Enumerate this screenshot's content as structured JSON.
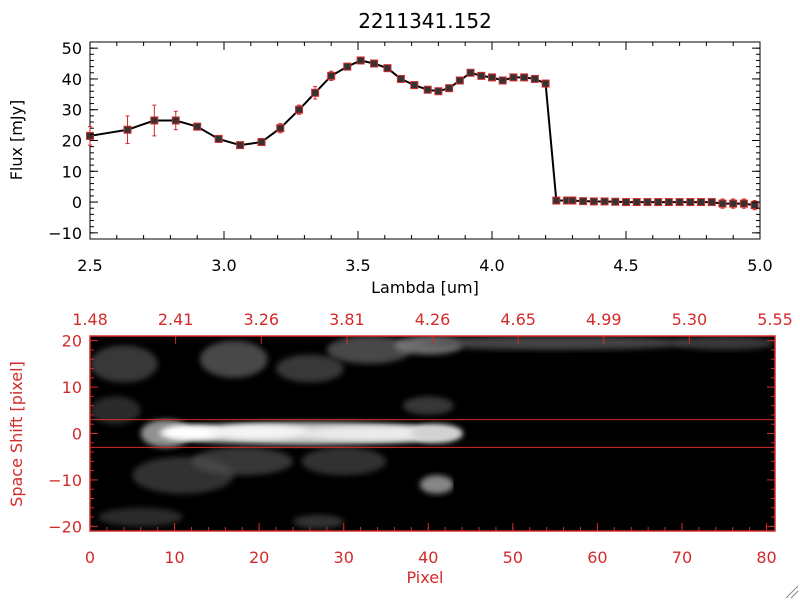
{
  "title": "2211341.152",
  "colors": {
    "axis": "#000000",
    "accent": "#d22b2b",
    "marker": "#d22b2b",
    "line": "#000000"
  },
  "chart_data": [
    {
      "type": "line",
      "xlabel": "Lambda [um]",
      "ylabel": "Flux [mJy]",
      "xlim": [
        2.5,
        5.0
      ],
      "ylim": [
        -12,
        52
      ],
      "xticks": [
        2.5,
        3.0,
        3.5,
        4.0,
        4.5,
        5.0
      ],
      "xtick_labels": [
        "2.5",
        "3.0",
        "3.5",
        "4.0",
        "4.5",
        "5.0"
      ],
      "yticks": [
        -10,
        0,
        10,
        20,
        30,
        40,
        50
      ],
      "ytick_labels": [
        "−10",
        "0",
        "10",
        "20",
        "30",
        "40",
        "50"
      ],
      "series": [
        {
          "x": [
            2.5,
            2.64,
            2.74,
            2.82,
            2.9,
            2.98,
            3.06,
            3.14,
            3.21,
            3.28,
            3.34,
            3.4,
            3.46,
            3.51,
            3.56,
            3.61,
            3.66,
            3.71,
            3.76,
            3.8,
            3.84,
            3.88,
            3.92,
            3.96,
            4.0,
            4.04,
            4.08,
            4.12,
            4.16,
            4.2,
            4.24,
            4.28,
            4.3,
            4.34,
            4.38,
            4.42,
            4.46,
            4.5,
            4.54,
            4.58,
            4.62,
            4.66,
            4.7,
            4.74,
            4.78,
            4.82,
            4.86,
            4.9,
            4.94,
            4.98
          ],
          "y": [
            21.5,
            23.5,
            26.5,
            26.5,
            24.5,
            20.5,
            18.5,
            19.5,
            24,
            30,
            35.5,
            41,
            44,
            46,
            45,
            43.5,
            40,
            38,
            36.5,
            36,
            37,
            39.5,
            42,
            41,
            40.5,
            39.5,
            40.5,
            40.5,
            40,
            38.5,
            0.5,
            0.5,
            0.5,
            0.3,
            0.2,
            0.2,
            0.1,
            0,
            0,
            0,
            0,
            0,
            0,
            0,
            0,
            0,
            -0.5,
            -0.5,
            -0.5,
            -1
          ],
          "err": [
            3,
            4.5,
            5,
            3,
            1,
            1,
            1,
            1,
            1.5,
            1.5,
            2,
            1.5,
            1,
            1,
            1,
            1,
            1,
            1,
            1,
            1,
            1,
            1,
            1,
            1,
            1,
            1,
            1,
            1,
            1,
            1,
            1,
            1,
            1,
            1,
            1,
            1,
            1,
            1,
            1,
            1,
            1,
            1,
            1,
            1,
            1,
            1,
            1.5,
            1.5,
            1.5,
            1.5
          ]
        }
      ]
    },
    {
      "type": "heatmap",
      "xlabel": "Pixel",
      "ylabel": "Space Shift [pixel]",
      "xlim": [
        0,
        81
      ],
      "ylim": [
        -21,
        21
      ],
      "xticks": [
        0,
        10,
        20,
        30,
        40,
        50,
        60,
        70,
        80
      ],
      "xtick_labels": [
        "0",
        "10",
        "20",
        "30",
        "40",
        "50",
        "60",
        "70",
        "80"
      ],
      "yticks": [
        -20,
        -10,
        0,
        10,
        20
      ],
      "ytick_labels": [
        "−20",
        "−10",
        "0",
        "10",
        "20"
      ],
      "top_tick_labels": [
        "1.48",
        "2.41",
        "3.26",
        "3.81",
        "4.26",
        "4.65",
        "4.99",
        "5.30",
        "5.55"
      ],
      "extraction_lines": [
        -3,
        3
      ],
      "trace_end": 43
    }
  ]
}
